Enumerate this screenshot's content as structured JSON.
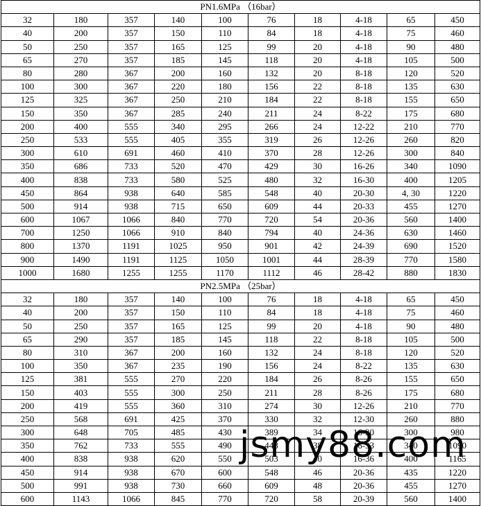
{
  "sections": [
    {
      "title": "PN1.6MPa （16bar）",
      "rows": [
        [
          "32",
          "180",
          "357",
          "140",
          "100",
          "76",
          "18",
          "4-18",
          "65",
          "450"
        ],
        [
          "40",
          "200",
          "357",
          "150",
          "110",
          "84",
          "18",
          "4-18",
          "75",
          "460"
        ],
        [
          "50",
          "250",
          "357",
          "165",
          "125",
          "99",
          "20",
          "4-18",
          "90",
          "480"
        ],
        [
          "65",
          "270",
          "357",
          "185",
          "145",
          "118",
          "20",
          "4-18",
          "105",
          "500"
        ],
        [
          "80",
          "280",
          "367",
          "200",
          "160",
          "132",
          "20",
          "8-18",
          "120",
          "520"
        ],
        [
          "100",
          "300",
          "367",
          "220",
          "180",
          "156",
          "22",
          "8-18",
          "135",
          "630"
        ],
        [
          "125",
          "325",
          "367",
          "250",
          "210",
          "184",
          "22",
          "8-18",
          "155",
          "650"
        ],
        [
          "150",
          "350",
          "367",
          "285",
          "240",
          "211",
          "24",
          "8-22",
          "175",
          "680"
        ],
        [
          "200",
          "400",
          "555",
          "340",
          "295",
          "266",
          "24",
          "12-22",
          "210",
          "770"
        ],
        [
          "250",
          "533",
          "555",
          "405",
          "355",
          "319",
          "26",
          "12-26",
          "260",
          "820"
        ],
        [
          "300",
          "610",
          "691",
          "460",
          "410",
          "370",
          "28",
          "12-26",
          "300",
          "840"
        ],
        [
          "350",
          "686",
          "733",
          "520",
          "470",
          "429",
          "30",
          "16-26",
          "340",
          "1090"
        ],
        [
          "400",
          "838",
          "733",
          "580",
          "525",
          "480",
          "32",
          "16-30",
          "400",
          "1205"
        ],
        [
          "450",
          "864",
          "938",
          "640",
          "585",
          "548",
          "40",
          "20-30",
          "4, 30",
          "1220"
        ],
        [
          "500",
          "914",
          "938",
          "715",
          "650",
          "609",
          "44",
          "20-33",
          "455",
          "1270"
        ],
        [
          "600",
          "1067",
          "1066",
          "840",
          "770",
          "720",
          "54",
          "20-36",
          "560",
          "1400"
        ],
        [
          "700",
          "1250",
          "1066",
          "910",
          "840",
          "794",
          "40",
          "24-36",
          "630",
          "1460"
        ],
        [
          "800",
          "1370",
          "1191",
          "1025",
          "950",
          "901",
          "42",
          "24-39",
          "690",
          "1520"
        ],
        [
          "900",
          "1490",
          "1191",
          "1125",
          "1050",
          "1001",
          "44",
          "28-39",
          "770",
          "1580"
        ],
        [
          "1000",
          "1680",
          "1255",
          "1255",
          "1170",
          "1112",
          "46",
          "28-42",
          "880",
          "1830"
        ]
      ]
    },
    {
      "title": "PN2.5MPa （25bar）",
      "rows": [
        [
          "32",
          "180",
          "357",
          "140",
          "100",
          "76",
          "18",
          "4-18",
          "65",
          "450"
        ],
        [
          "40",
          "200",
          "357",
          "150",
          "110",
          "84",
          "18",
          "4-18",
          "75",
          "460"
        ],
        [
          "50",
          "250",
          "357",
          "165",
          "125",
          "99",
          "20",
          "4-18",
          "90",
          "480"
        ],
        [
          "65",
          "290",
          "357",
          "185",
          "145",
          "118",
          "22",
          "8-18",
          "105",
          "500"
        ],
        [
          "80",
          "310",
          "367",
          "200",
          "160",
          "132",
          "24",
          "8-18",
          "120",
          "520"
        ],
        [
          "100",
          "350",
          "367",
          "235",
          "190",
          "156",
          "24",
          "8-22",
          "135",
          "630"
        ],
        [
          "125",
          "381",
          "555",
          "270",
          "220",
          "184",
          "26",
          "8-26",
          "155",
          "650"
        ],
        [
          "150",
          "403",
          "555",
          "300",
          "250",
          "211",
          "28",
          "8-26",
          "175",
          "680"
        ],
        [
          "200",
          "419",
          "555",
          "360",
          "310",
          "274",
          "30",
          "12-26",
          "210",
          "770"
        ],
        [
          "250",
          "568",
          "691",
          "425",
          "370",
          "330",
          "32",
          "12-30",
          "260",
          "880"
        ],
        [
          "300",
          "648",
          "705",
          "485",
          "430",
          "389",
          "34",
          "16-30",
          "300",
          "980"
        ],
        [
          "350",
          "762",
          "733",
          "555",
          "490",
          "448",
          "38",
          "16-33",
          "340",
          "1090"
        ],
        [
          "400",
          "838",
          "938",
          "620",
          "550",
          "503",
          "40",
          "16-36",
          "400",
          "1165"
        ],
        [
          "450",
          "914",
          "938",
          "670",
          "600",
          "548",
          "46",
          "20-36",
          "435",
          "1220"
        ],
        [
          "500",
          "991",
          "938",
          "730",
          "660",
          "609",
          "48",
          "20-36",
          "455",
          "1270"
        ],
        [
          "600",
          "1143",
          "1066",
          "845",
          "770",
          "720",
          "58",
          "20-39",
          "560",
          "1400"
        ]
      ]
    }
  ],
  "watermark": "jsmy88.com"
}
